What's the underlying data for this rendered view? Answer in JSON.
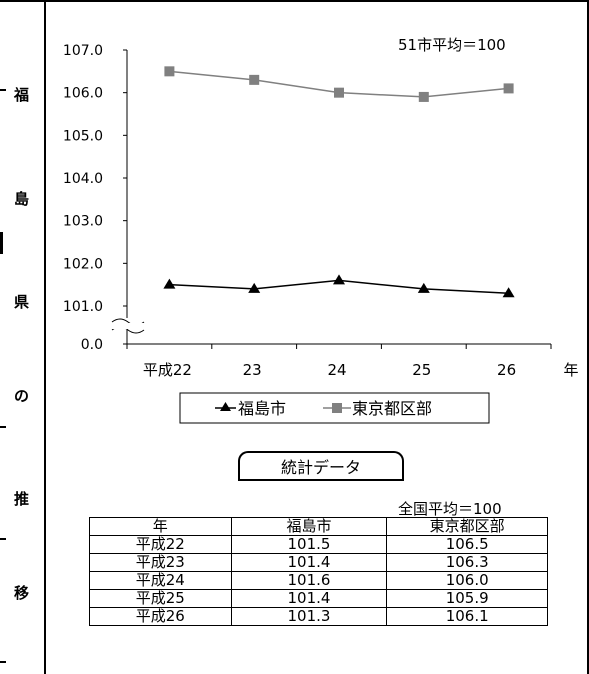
{
  "side_title": [
    "福",
    "島",
    "県",
    "の",
    "推",
    "移"
  ],
  "chart_data": {
    "type": "line",
    "annotation": "51市平均＝100",
    "x_unit": "年",
    "categories": [
      "平成22",
      "23",
      "24",
      "25",
      "26"
    ],
    "y_ticks": [
      "107.0",
      "106.0",
      "105.0",
      "104.0",
      "103.0",
      "102.0",
      "101.0",
      "0.0"
    ],
    "ylim": [
      101.0,
      107.0
    ],
    "axis_break": true,
    "series": [
      {
        "name": "福島市",
        "marker": "triangle",
        "color": "#000000",
        "values": [
          101.5,
          101.4,
          101.6,
          101.4,
          101.3
        ]
      },
      {
        "name": "東京都区部",
        "marker": "square",
        "color": "#808080",
        "values": [
          106.5,
          106.3,
          106.0,
          105.9,
          106.1
        ]
      }
    ],
    "legend_position": "bottom"
  },
  "stats": {
    "label": "統計データ",
    "note": "全国平均＝100",
    "headers": [
      "年",
      "福島市",
      "東京都区部"
    ],
    "rows": [
      [
        "平成22",
        "101.5",
        "106.5"
      ],
      [
        "平成23",
        "101.4",
        "106.3"
      ],
      [
        "平成24",
        "101.6",
        "106.0"
      ],
      [
        "平成25",
        "101.4",
        "105.9"
      ],
      [
        "平成26",
        "101.3",
        "106.1"
      ]
    ]
  }
}
